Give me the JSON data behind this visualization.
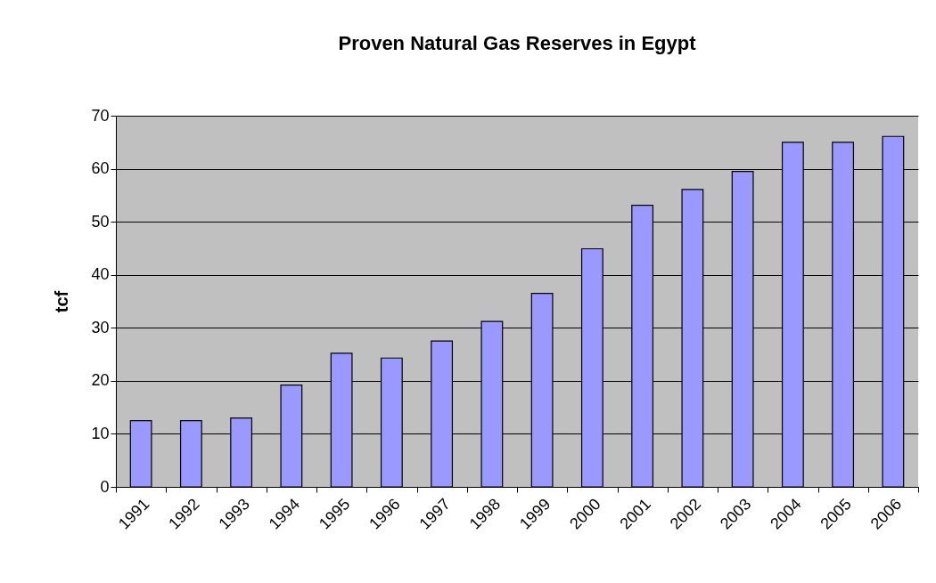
{
  "chart_data": {
    "type": "bar",
    "title": "Proven Natural Gas Reserves in Egypt",
    "ylabel": "tcf",
    "categories": [
      "1991",
      "1992",
      "1993",
      "1994",
      "1995",
      "1996",
      "1997",
      "1998",
      "1999",
      "2000",
      "2001",
      "2002",
      "2003",
      "2004",
      "2005",
      "2006"
    ],
    "values": [
      12.5,
      12.5,
      13,
      19.2,
      25.2,
      24.3,
      27.5,
      31.2,
      36.5,
      44.9,
      53.1,
      56.1,
      59.5,
      65,
      65,
      66.1
    ],
    "color": "#9999ff",
    "ylim": [
      0,
      70
    ],
    "yticks": [
      0,
      10,
      20,
      30,
      40,
      50,
      60,
      70
    ],
    "grid": "y"
  }
}
